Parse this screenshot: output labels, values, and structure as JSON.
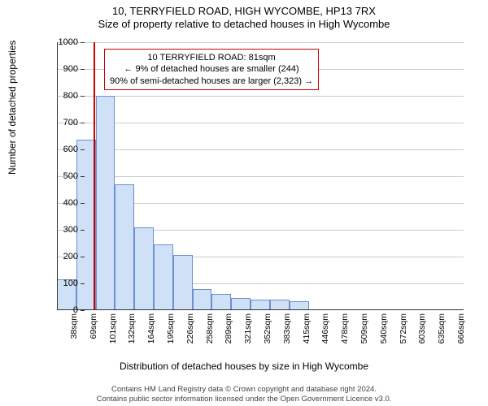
{
  "title_line1": "10, TERRYFIELD ROAD, HIGH WYCOMBE, HP13 7RX",
  "title_line2": "Size of property relative to detached houses in High Wycombe",
  "ylabel": "Number of detached properties",
  "xlabel": "Distribution of detached houses by size in High Wycombe",
  "histogram": {
    "type": "histogram",
    "categories": [
      "38sqm",
      "69sqm",
      "101sqm",
      "132sqm",
      "164sqm",
      "195sqm",
      "226sqm",
      "258sqm",
      "289sqm",
      "321sqm",
      "352sqm",
      "383sqm",
      "415sqm",
      "446sqm",
      "478sqm",
      "509sqm",
      "540sqm",
      "572sqm",
      "603sqm",
      "635sqm",
      "666sqm"
    ],
    "values": [
      115,
      635,
      800,
      470,
      310,
      245,
      205,
      80,
      60,
      45,
      38,
      38,
      34,
      0,
      0,
      0,
      0,
      0,
      0,
      0,
      0
    ],
    "bar_fill": "#cfe0f7",
    "bar_border": "#6b8fcf",
    "ylim": [
      0,
      1000
    ],
    "yticks": [
      0,
      100,
      200,
      300,
      400,
      500,
      600,
      700,
      800,
      900,
      1000
    ],
    "grid_color": "#cccccc",
    "background_color": "#ffffff",
    "axis_color": "#333333",
    "label_fontsize": 12,
    "tick_fontsize": 11,
    "xtick_rotation": -90
  },
  "marker": {
    "position_sqm": 81,
    "color": "#cc0000",
    "box": {
      "line1": "10 TERRYFIELD ROAD: 81sqm",
      "line2": "← 9% of detached houses are smaller (244)",
      "line3": "90% of semi-detached houses are larger (2,323) →"
    }
  },
  "footer": {
    "line1": "Contains HM Land Registry data © Crown copyright and database right 2024.",
    "line2": "Contains public sector information licensed under the Open Government Licence v3.0."
  }
}
